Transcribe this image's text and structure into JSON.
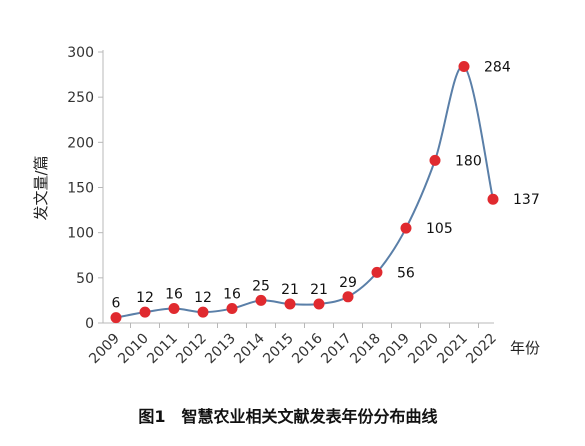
{
  "chart_data": {
    "type": "line",
    "title": "",
    "caption": "图1　智慧农业相关文献发表年份分布曲线",
    "xlabel": "年份",
    "ylabel": "发文量/篇",
    "ylim": [
      0,
      300
    ],
    "yticks": [
      0,
      50,
      100,
      150,
      200,
      250,
      300
    ],
    "categories": [
      "2009",
      "2010",
      "2011",
      "2012",
      "2013",
      "2014",
      "2015",
      "2016",
      "2017",
      "2018",
      "2019",
      "2020",
      "2021",
      "2022"
    ],
    "series": [
      {
        "values": [
          6,
          12,
          16,
          12,
          16,
          25,
          21,
          21,
          29,
          56,
          105,
          180,
          284,
          137
        ]
      }
    ],
    "grid": false,
    "legend": "none",
    "smooth": true,
    "line_color": "#5a7fa8",
    "marker_color": "#e02a2f",
    "axis_color": "#b8b8b8"
  }
}
